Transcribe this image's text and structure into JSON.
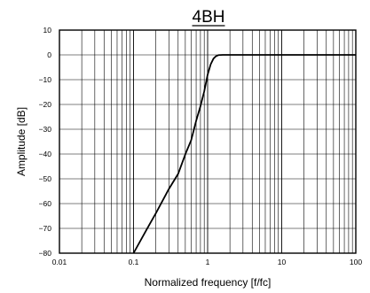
{
  "chart_data": {
    "type": "line",
    "title": "4BH",
    "xlabel": "Normalized frequency [f/fc]",
    "ylabel": "Amplitude [dB]",
    "xscale": "log",
    "xlim": [
      0.01,
      100
    ],
    "ylim": [
      -80,
      10
    ],
    "grid": true,
    "x_ticks": [
      0.01,
      0.1,
      1,
      10,
      100
    ],
    "x_tick_labels": [
      "0.01",
      "0.1",
      "1",
      "10",
      "100"
    ],
    "y_ticks": [
      10,
      0,
      -10,
      -20,
      -30,
      -40,
      -50,
      -60,
      -70,
      -80
    ],
    "y_tick_labels": [
      "10",
      "0",
      "−10",
      "−20",
      "−30",
      "−40",
      "−50",
      "−60",
      "−70",
      "−80"
    ],
    "series": [
      {
        "color": "#000000",
        "points": [
          [
            0.1,
            -80
          ],
          [
            0.15,
            -70.5
          ],
          [
            0.2,
            -63.9
          ],
          [
            0.3,
            -54.1
          ],
          [
            0.4,
            -48.0
          ],
          [
            0.5,
            -40.1
          ],
          [
            0.6,
            -34.4
          ],
          [
            0.7,
            -26.6
          ],
          [
            0.8,
            -20.7
          ],
          [
            0.9,
            -14.7
          ],
          [
            1.0,
            -8.0
          ],
          [
            1.1,
            -3.8
          ],
          [
            1.2,
            -1.5
          ],
          [
            1.3,
            -0.5
          ],
          [
            1.4,
            -0.1
          ],
          [
            1.6,
            0
          ],
          [
            2,
            0
          ],
          [
            5,
            0
          ],
          [
            10,
            0
          ],
          [
            30,
            0
          ],
          [
            100,
            0
          ]
        ]
      }
    ]
  }
}
